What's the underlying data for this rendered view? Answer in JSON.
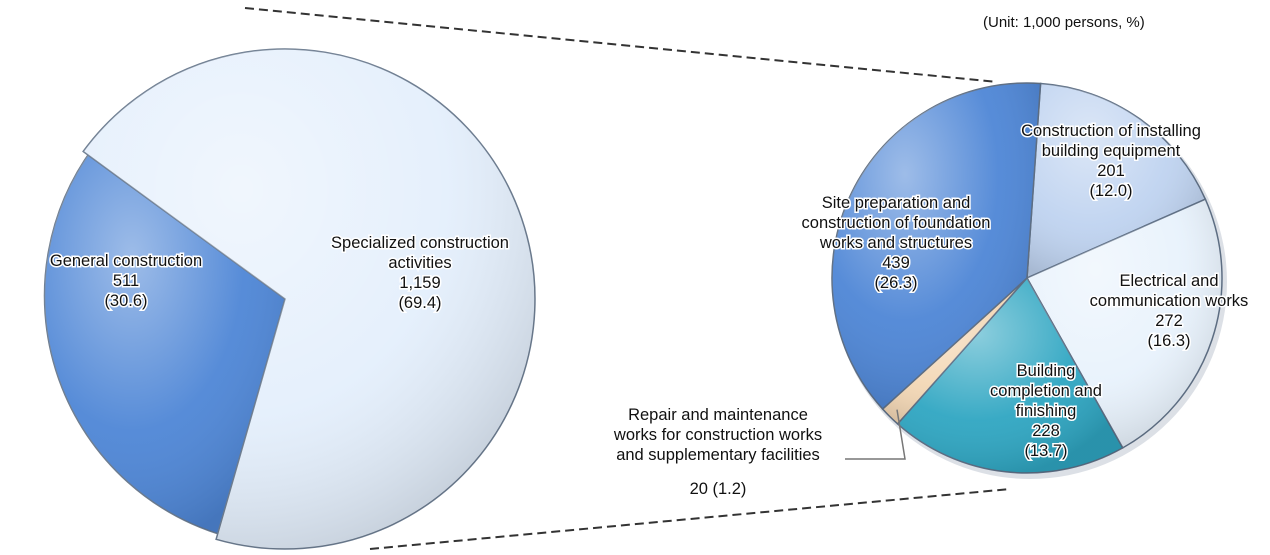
{
  "unit_note": "(Unit: 1,000 persons, %)",
  "chart_data": [
    {
      "type": "pie",
      "title": "",
      "slices": [
        {
          "name": "General construction",
          "lines": [
            "General construction"
          ],
          "value": "511",
          "value_num": 511,
          "pct": "(30.6)",
          "pct_num": 30.6,
          "color": "#4E86D6"
        },
        {
          "name": "Specialized construction activities",
          "lines": [
            "Specialized construction",
            "activities"
          ],
          "value": "1,159",
          "value_num": 1159,
          "pct": "(69.4)",
          "pct_num": 69.4,
          "color": "#E4EFFC"
        }
      ]
    },
    {
      "type": "pie",
      "title": "",
      "slices": [
        {
          "name": "Construction of installing building equipment",
          "lines": [
            "Construction of installing",
            "building equipment"
          ],
          "value": "201",
          "value_num": 201,
          "pct": "(12.0)",
          "pct_num": 12.0,
          "color": "#BFD3F0"
        },
        {
          "name": "Electrical and communication works",
          "lines": [
            "Electrical and",
            "communication works"
          ],
          "value": "272",
          "value_num": 272,
          "pct": "(16.3)",
          "pct_num": 16.3,
          "color": "#E8F2FC"
        },
        {
          "name": "Building completion and finishing",
          "lines": [
            "Building",
            "completion and",
            "finishing"
          ],
          "value": "228",
          "value_num": 228,
          "pct": "(13.7)",
          "pct_num": 13.7,
          "color": "#2FA6C2"
        },
        {
          "name": "Repair and maintenance works for construction works and supplementary facilities",
          "lines": [
            "Repair and maintenance",
            "works for construction works",
            "and supplementary facilities"
          ],
          "value": "20 (1.2)",
          "value_num": 20,
          "pct": "",
          "pct_num": 1.2,
          "color": "#F3D7B5"
        },
        {
          "name": "Site preparation and construction of foundation works and structures",
          "lines": [
            "Site preparation and",
            "construction of foundation",
            "works and structures"
          ],
          "value": "439",
          "value_num": 439,
          "pct": "(26.3)",
          "pct_num": 26.3,
          "color": "#4E86D6"
        }
      ]
    }
  ]
}
